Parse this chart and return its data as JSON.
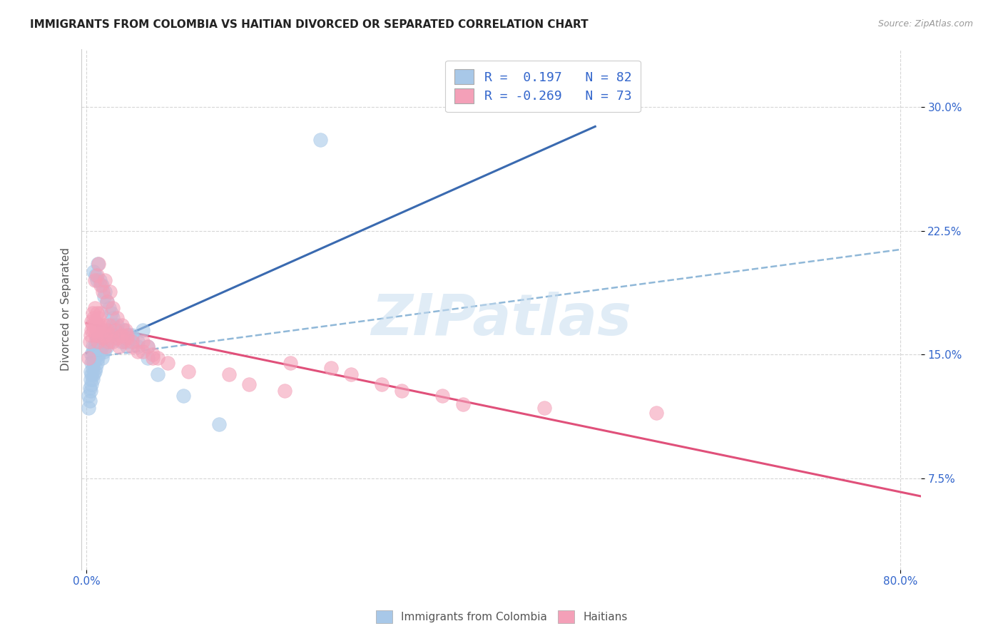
{
  "title": "IMMIGRANTS FROM COLOMBIA VS HAITIAN DIVORCED OR SEPARATED CORRELATION CHART",
  "source": "Source: ZipAtlas.com",
  "ylabel": "Divorced or Separated",
  "ytick_labels": [
    "7.5%",
    "15.0%",
    "22.5%",
    "30.0%"
  ],
  "ytick_values": [
    0.075,
    0.15,
    0.225,
    0.3
  ],
  "xlim": [
    -0.005,
    0.82
  ],
  "ylim": [
    0.02,
    0.335
  ],
  "legend_r1": "R =  0.197   N = 82",
  "legend_r2": "R = -0.269   N = 73",
  "color_blue": "#a8c8e8",
  "color_pink": "#f4a0b8",
  "line_blue": "#3a6ab0",
  "line_pink": "#e0507a",
  "line_dashed_color": "#90b8d8",
  "watermark": "ZIPatlas",
  "colombia_x": [
    0.002,
    0.002,
    0.003,
    0.003,
    0.004,
    0.004,
    0.004,
    0.005,
    0.005,
    0.005,
    0.005,
    0.006,
    0.006,
    0.006,
    0.006,
    0.007,
    0.007,
    0.007,
    0.008,
    0.008,
    0.008,
    0.009,
    0.009,
    0.009,
    0.01,
    0.01,
    0.01,
    0.011,
    0.011,
    0.012,
    0.012,
    0.013,
    0.013,
    0.014,
    0.014,
    0.015,
    0.015,
    0.016,
    0.016,
    0.017,
    0.018,
    0.019,
    0.02,
    0.021,
    0.022,
    0.023,
    0.025,
    0.026,
    0.028,
    0.03,
    0.032,
    0.034,
    0.036,
    0.038,
    0.04,
    0.042,
    0.045,
    0.05,
    0.055,
    0.06,
    0.007,
    0.009,
    0.01,
    0.011,
    0.013,
    0.015,
    0.017,
    0.018,
    0.02,
    0.022,
    0.024,
    0.026,
    0.03,
    0.035,
    0.04,
    0.045,
    0.05,
    0.06,
    0.07,
    0.095,
    0.13,
    0.23
  ],
  "colombia_y": [
    0.125,
    0.118,
    0.13,
    0.122,
    0.128,
    0.135,
    0.14,
    0.132,
    0.138,
    0.145,
    0.15,
    0.135,
    0.142,
    0.148,
    0.155,
    0.138,
    0.145,
    0.152,
    0.14,
    0.148,
    0.155,
    0.142,
    0.15,
    0.158,
    0.145,
    0.152,
    0.16,
    0.148,
    0.155,
    0.15,
    0.158,
    0.152,
    0.16,
    0.155,
    0.162,
    0.148,
    0.155,
    0.158,
    0.165,
    0.152,
    0.158,
    0.162,
    0.155,
    0.16,
    0.165,
    0.158,
    0.162,
    0.168,
    0.16,
    0.165,
    0.162,
    0.158,
    0.165,
    0.16,
    0.155,
    0.162,
    0.16,
    0.158,
    0.165,
    0.155,
    0.2,
    0.198,
    0.195,
    0.205,
    0.195,
    0.192,
    0.185,
    0.188,
    0.182,
    0.178,
    0.175,
    0.172,
    0.168,
    0.162,
    0.158,
    0.162,
    0.155,
    0.148,
    0.138,
    0.125,
    0.108,
    0.28
  ],
  "haiti_x": [
    0.002,
    0.003,
    0.004,
    0.005,
    0.005,
    0.006,
    0.006,
    0.007,
    0.007,
    0.008,
    0.008,
    0.009,
    0.009,
    0.01,
    0.01,
    0.011,
    0.011,
    0.012,
    0.012,
    0.013,
    0.014,
    0.015,
    0.016,
    0.017,
    0.018,
    0.019,
    0.02,
    0.021,
    0.022,
    0.024,
    0.026,
    0.028,
    0.03,
    0.032,
    0.034,
    0.036,
    0.038,
    0.04,
    0.045,
    0.05,
    0.055,
    0.06,
    0.065,
    0.07,
    0.008,
    0.01,
    0.012,
    0.014,
    0.016,
    0.018,
    0.02,
    0.023,
    0.026,
    0.03,
    0.035,
    0.04,
    0.045,
    0.055,
    0.065,
    0.08,
    0.1,
    0.14,
    0.16,
    0.195,
    0.2,
    0.24,
    0.26,
    0.29,
    0.31,
    0.35,
    0.37,
    0.45,
    0.56
  ],
  "haiti_y": [
    0.148,
    0.158,
    0.162,
    0.17,
    0.165,
    0.175,
    0.168,
    0.172,
    0.165,
    0.178,
    0.17,
    0.162,
    0.168,
    0.175,
    0.165,
    0.158,
    0.168,
    0.172,
    0.162,
    0.168,
    0.175,
    0.165,
    0.16,
    0.168,
    0.162,
    0.155,
    0.165,
    0.158,
    0.168,
    0.162,
    0.158,
    0.165,
    0.16,
    0.155,
    0.162,
    0.158,
    0.165,
    0.16,
    0.155,
    0.152,
    0.158,
    0.155,
    0.15,
    0.148,
    0.195,
    0.198,
    0.205,
    0.192,
    0.188,
    0.195,
    0.182,
    0.188,
    0.178,
    0.172,
    0.168,
    0.162,
    0.158,
    0.152,
    0.148,
    0.145,
    0.14,
    0.138,
    0.132,
    0.128,
    0.145,
    0.142,
    0.138,
    0.132,
    0.128,
    0.125,
    0.12,
    0.118,
    0.115
  ]
}
